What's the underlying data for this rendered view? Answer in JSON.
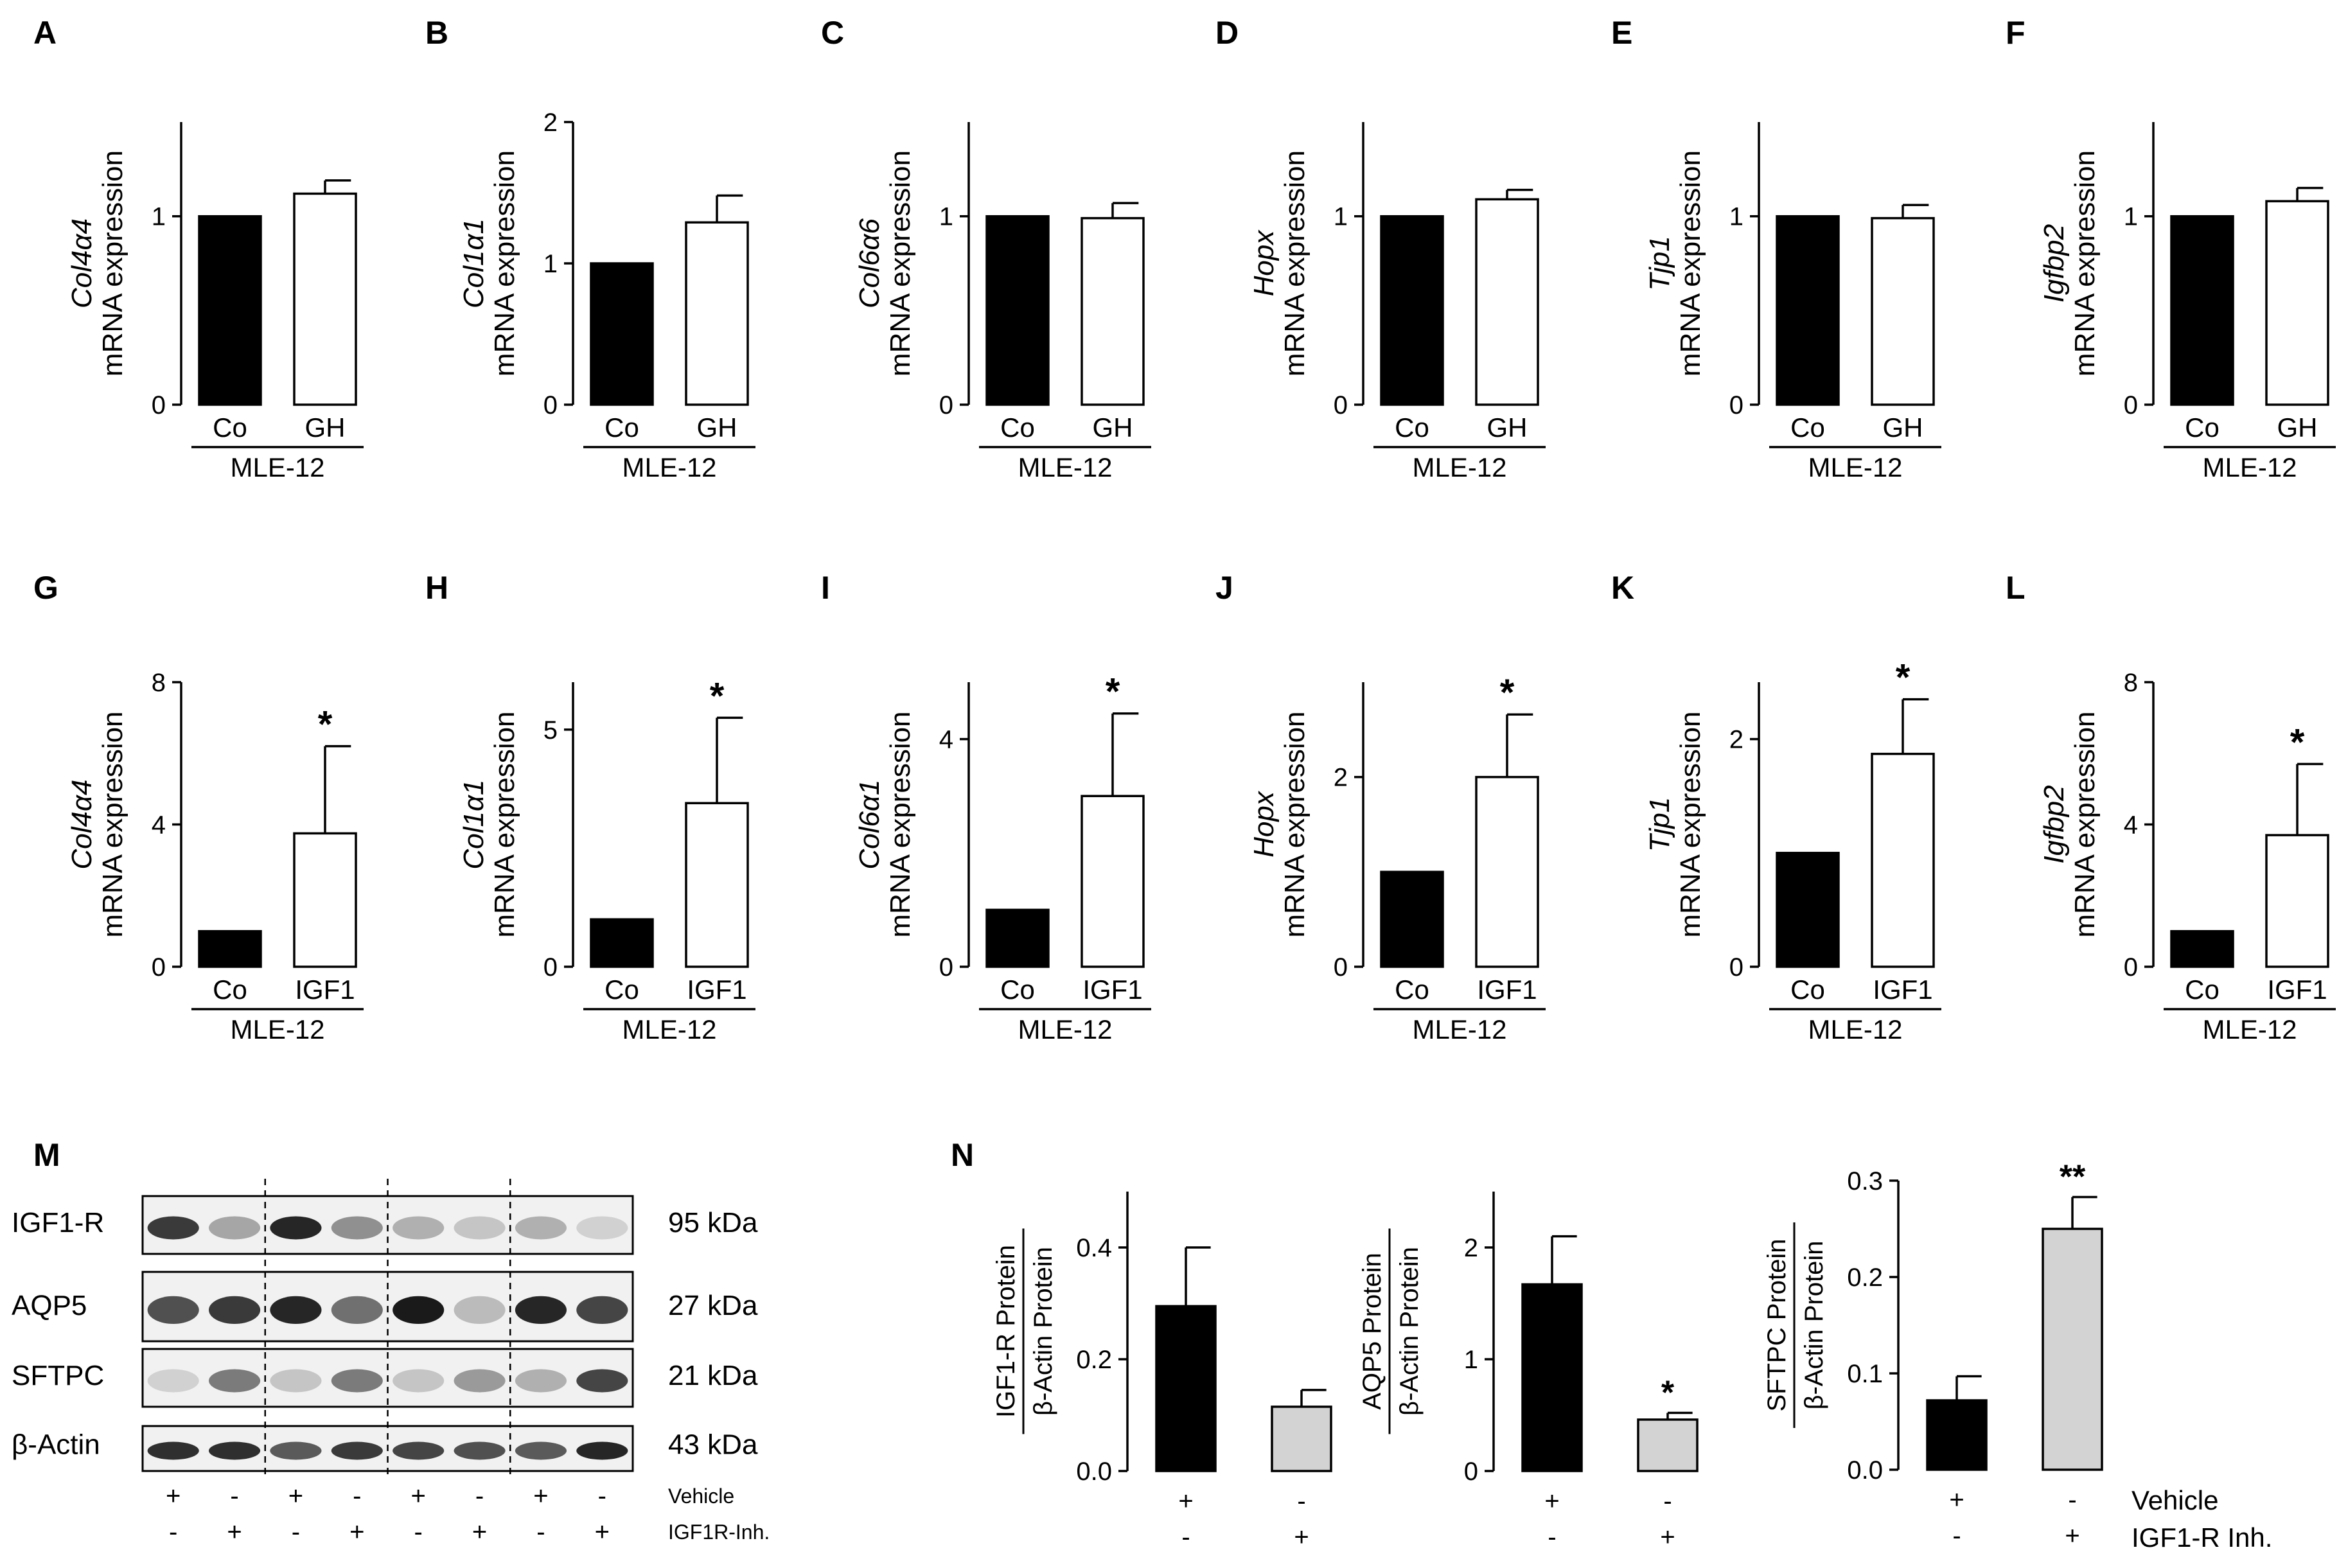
{
  "colors": {
    "black": "#000000",
    "white": "#ffffff",
    "gray": "#d3d3d3",
    "blot_bg": "#f1f1f1",
    "band": "#1a1a1a"
  },
  "chart_data": [
    {
      "id": "A",
      "type": "bar",
      "panel_label": "A",
      "gene": "Col4α4",
      "ylabel": "mRNA expression",
      "categories": [
        "Co",
        "GH"
      ],
      "values": [
        1.0,
        1.12
      ],
      "errors": [
        0,
        0.07
      ],
      "ylim": [
        0,
        1.5
      ],
      "yticks": [
        0,
        1
      ],
      "group_label": "MLE-12",
      "significance": [
        "",
        ""
      ],
      "bar_colors": [
        "black",
        "white"
      ]
    },
    {
      "id": "B",
      "type": "bar",
      "panel_label": "B",
      "gene": "Col1α1",
      "ylabel": "mRNA expression",
      "categories": [
        "Co",
        "GH"
      ],
      "values": [
        1.0,
        1.29
      ],
      "errors": [
        0,
        0.19
      ],
      "ylim": [
        0,
        2
      ],
      "yticks": [
        0,
        1,
        2
      ],
      "group_label": "MLE-12",
      "significance": [
        "",
        ""
      ],
      "bar_colors": [
        "black",
        "white"
      ]
    },
    {
      "id": "C",
      "type": "bar",
      "panel_label": "C",
      "gene": "Col6α6",
      "ylabel": "mRNA expression",
      "categories": [
        "Co",
        "GH"
      ],
      "values": [
        1.0,
        0.99
      ],
      "errors": [
        0,
        0.08
      ],
      "ylim": [
        0,
        1.5
      ],
      "yticks": [
        0,
        1
      ],
      "group_label": "MLE-12",
      "significance": [
        "",
        ""
      ],
      "bar_colors": [
        "black",
        "white"
      ]
    },
    {
      "id": "D",
      "type": "bar",
      "panel_label": "D",
      "gene": "Hopx",
      "ylabel": "mRNA expression",
      "categories": [
        "Co",
        "GH"
      ],
      "values": [
        1.0,
        1.09
      ],
      "errors": [
        0,
        0.05
      ],
      "ylim": [
        0,
        1.5
      ],
      "yticks": [
        0,
        1
      ],
      "group_label": "MLE-12",
      "significance": [
        "",
        ""
      ],
      "bar_colors": [
        "black",
        "white"
      ]
    },
    {
      "id": "E",
      "type": "bar",
      "panel_label": "E",
      "gene": "Tjp1",
      "ylabel": "mRNA expression",
      "categories": [
        "Co",
        "GH"
      ],
      "values": [
        1.0,
        0.99
      ],
      "errors": [
        0,
        0.07
      ],
      "ylim": [
        0,
        1.5
      ],
      "yticks": [
        0,
        1
      ],
      "group_label": "MLE-12",
      "significance": [
        "",
        ""
      ],
      "bar_colors": [
        "black",
        "white"
      ]
    },
    {
      "id": "F",
      "type": "bar",
      "panel_label": "F",
      "gene": "Igfbp2",
      "ylabel": "mRNA expression",
      "categories": [
        "Co",
        "GH"
      ],
      "values": [
        1.0,
        1.08
      ],
      "errors": [
        0,
        0.07
      ],
      "ylim": [
        0,
        1.5
      ],
      "yticks": [
        0,
        1
      ],
      "group_label": "MLE-12",
      "significance": [
        "",
        ""
      ],
      "bar_colors": [
        "black",
        "white"
      ]
    },
    {
      "id": "G",
      "type": "bar",
      "panel_label": "G",
      "gene": "Col4α4",
      "ylabel": "mRNA expression",
      "categories": [
        "Co",
        "IGF1"
      ],
      "values": [
        1.0,
        3.75
      ],
      "errors": [
        0,
        2.45
      ],
      "ylim": [
        0,
        8
      ],
      "yticks": [
        0,
        4,
        8
      ],
      "group_label": "MLE-12",
      "significance": [
        "",
        "*"
      ],
      "bar_colors": [
        "black",
        "white"
      ]
    },
    {
      "id": "H",
      "type": "bar",
      "panel_label": "H",
      "gene": "Col1α1",
      "ylabel": "mRNA expression",
      "categories": [
        "Co",
        "IGF1"
      ],
      "values": [
        1.0,
        3.45
      ],
      "errors": [
        0,
        1.8
      ],
      "ylim": [
        0,
        6
      ],
      "yticks": [
        0,
        5
      ],
      "group_label": "MLE-12",
      "significance": [
        "",
        "*"
      ],
      "bar_colors": [
        "black",
        "white"
      ]
    },
    {
      "id": "I",
      "type": "bar",
      "panel_label": "I",
      "gene": "Col6α1",
      "ylabel": "mRNA expression",
      "categories": [
        "Co",
        "IGF1"
      ],
      "values": [
        1.0,
        3.0
      ],
      "errors": [
        0,
        1.45
      ],
      "ylim": [
        0,
        5
      ],
      "yticks": [
        0,
        4
      ],
      "group_label": "MLE-12",
      "significance": [
        "",
        "*"
      ],
      "bar_colors": [
        "black",
        "white"
      ]
    },
    {
      "id": "J",
      "type": "bar",
      "panel_label": "J",
      "gene": "Hopx",
      "ylabel": "mRNA expression",
      "categories": [
        "Co",
        "IGF1"
      ],
      "values": [
        1.0,
        2.0
      ],
      "errors": [
        0,
        0.66
      ],
      "ylim": [
        0,
        3
      ],
      "yticks": [
        0,
        2
      ],
      "group_label": "MLE-12",
      "significance": [
        "",
        "*"
      ],
      "bar_colors": [
        "black",
        "white"
      ]
    },
    {
      "id": "K",
      "type": "bar",
      "panel_label": "K",
      "gene": "Tjp1",
      "ylabel": "mRNA expression",
      "categories": [
        "Co",
        "IGF1"
      ],
      "values": [
        1.0,
        1.87
      ],
      "errors": [
        0,
        0.48
      ],
      "ylim": [
        0,
        2.5
      ],
      "yticks": [
        0,
        2
      ],
      "group_label": "MLE-12",
      "significance": [
        "",
        "*"
      ],
      "bar_colors": [
        "black",
        "white"
      ]
    },
    {
      "id": "L",
      "type": "bar",
      "panel_label": "L",
      "gene": "Igfbp2",
      "ylabel": "mRNA expression",
      "categories": [
        "Co",
        "IGF1"
      ],
      "values": [
        1.0,
        3.7
      ],
      "errors": [
        0,
        2.0
      ],
      "ylim": [
        0,
        8
      ],
      "yticks": [
        0,
        4,
        8
      ],
      "group_label": "MLE-12",
      "significance": [
        "",
        "*"
      ],
      "bar_colors": [
        "black",
        "white"
      ]
    },
    {
      "id": "N1",
      "type": "bar",
      "panel_label": "N",
      "ylabel_top": "IGF1-R Protein",
      "ylabel_bottom": "β-Actin Protein",
      "categories": [
        "Vehicle",
        "IGF1-R Inh."
      ],
      "values": [
        0.295,
        0.115
      ],
      "errors": [
        0.105,
        0.03
      ],
      "ylim": [
        0,
        0.5
      ],
      "yticks": [
        0.0,
        0.2,
        0.4
      ],
      "ytick_labels": [
        "0.0",
        "0.2",
        "0.4"
      ],
      "treatment_rows": [
        [
          "+",
          "-"
        ],
        [
          "-",
          "+"
        ]
      ],
      "significance": [
        "",
        ""
      ],
      "bar_colors": [
        "black",
        "gray"
      ]
    },
    {
      "id": "N2",
      "type": "bar",
      "ylabel_top": "AQP5 Protein",
      "ylabel_bottom": "β-Actin Protein",
      "categories": [
        "Vehicle",
        "IGF1-R Inh."
      ],
      "values": [
        1.67,
        0.46
      ],
      "errors": [
        0.43,
        0.06
      ],
      "ylim": [
        0,
        2.5
      ],
      "yticks": [
        0,
        1,
        2
      ],
      "ytick_labels": [
        "0",
        "1",
        "2"
      ],
      "treatment_rows": [
        [
          "+",
          "-"
        ],
        [
          "-",
          "+"
        ]
      ],
      "significance": [
        "",
        "*"
      ],
      "bar_colors": [
        "black",
        "gray"
      ]
    },
    {
      "id": "N3",
      "type": "bar",
      "ylabel_top": "SFTPC Protein",
      "ylabel_bottom": "β-Actin Protein",
      "categories": [
        "Vehicle",
        "IGF1-R Inh."
      ],
      "values": [
        0.072,
        0.25
      ],
      "errors": [
        0.025,
        0.033
      ],
      "ylim": [
        0,
        0.3
      ],
      "yticks": [
        0.0,
        0.1,
        0.2,
        0.3
      ],
      "ytick_labels": [
        "0.0",
        "0.1",
        "0.2",
        "0.3"
      ],
      "treatment_rows": [
        [
          "+",
          "-"
        ],
        [
          "-",
          "+"
        ]
      ],
      "row_labels": [
        "Vehicle",
        "IGF1-R Inh."
      ],
      "significance": [
        "",
        "**"
      ],
      "bar_colors": [
        "black",
        "gray"
      ]
    }
  ],
  "blot": {
    "panel_label": "M",
    "rows": [
      {
        "protein": "IGF1-R",
        "kda": "95 kDa",
        "intensity": [
          0.85,
          0.35,
          0.95,
          0.45,
          0.3,
          0.2,
          0.3,
          0.15
        ]
      },
      {
        "protein": "AQP5",
        "kda": "27 kDa",
        "intensity": [
          0.75,
          0.85,
          0.95,
          0.6,
          1.0,
          0.25,
          0.95,
          0.8
        ]
      },
      {
        "protein": "SFTPC",
        "kda": "21 kDa",
        "intensity": [
          0.15,
          0.55,
          0.2,
          0.55,
          0.2,
          0.4,
          0.3,
          0.8
        ]
      },
      {
        "protein": "β-Actin",
        "kda": "43 kDa",
        "intensity": [
          0.9,
          0.9,
          0.7,
          0.85,
          0.8,
          0.75,
          0.7,
          0.95
        ]
      }
    ],
    "vehicle_row": [
      "+",
      "-",
      "+",
      "-",
      "+",
      "-",
      "+",
      "-"
    ],
    "inhibitor_row": [
      "-",
      "+",
      "-",
      "+",
      "-",
      "+",
      "-",
      "+"
    ],
    "vehicle_label": "Vehicle",
    "inhibitor_label": "IGF1R-Inh."
  }
}
